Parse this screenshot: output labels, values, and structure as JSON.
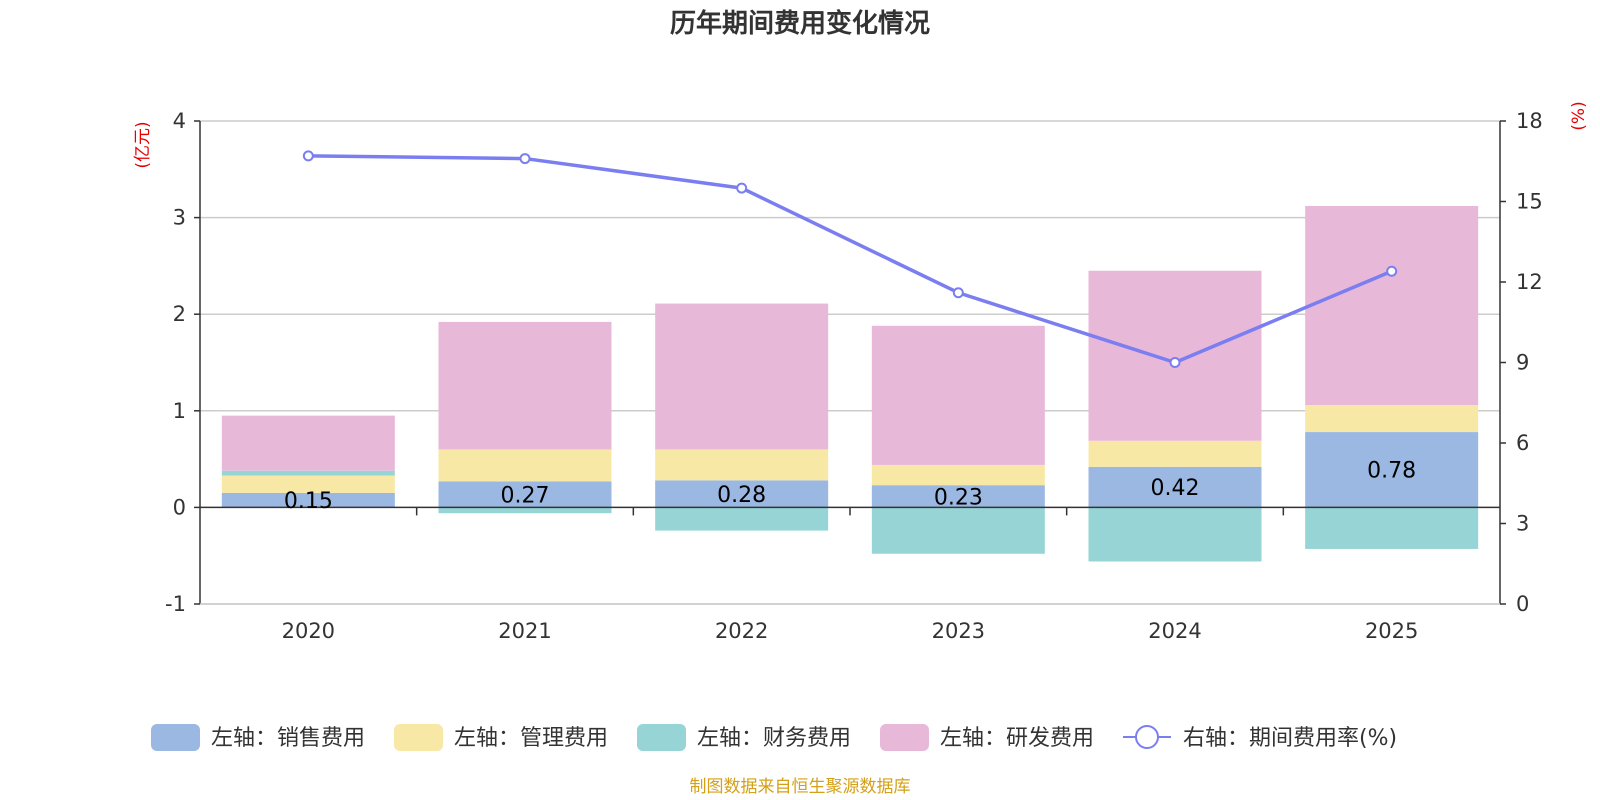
{
  "chart_data": {
    "type": "bar",
    "stacked": true,
    "title": "历年期间费用变化情况",
    "categories": [
      "2020",
      "2021",
      "2022",
      "2023",
      "2024",
      "2025"
    ],
    "left_axis": {
      "unit": "(亿元)",
      "min": -1,
      "max": 4,
      "ticks": [
        -1,
        0,
        1,
        2,
        3,
        4
      ]
    },
    "right_axis": {
      "unit": "(%)",
      "min": 0,
      "max": 18,
      "ticks": [
        0,
        3,
        6,
        9,
        12,
        15,
        18
      ]
    },
    "series": [
      {
        "name": "左轴：销售费用",
        "axis": "left",
        "color": "#9bb8e3",
        "values": [
          0.15,
          0.27,
          0.28,
          0.23,
          0.42,
          0.78
        ],
        "labels": [
          "0.15",
          "0.27",
          "0.28",
          "0.23",
          "0.42",
          "0.78"
        ]
      },
      {
        "name": "左轴：管理费用",
        "axis": "left",
        "color": "#f8e8a6",
        "values": [
          0.18,
          0.33,
          0.32,
          0.21,
          0.27,
          0.28
        ]
      },
      {
        "name": "左轴：财务费用",
        "axis": "left",
        "color": "#96d4d5",
        "values": [
          0.05,
          -0.06,
          -0.24,
          -0.48,
          -0.56,
          -0.43
        ]
      },
      {
        "name": "左轴：研发费用",
        "axis": "left",
        "color": "#e8b8d9",
        "values": [
          0.57,
          1.32,
          1.51,
          1.44,
          1.76,
          2.06
        ]
      },
      {
        "name": "右轴：期间费用率(%)",
        "axis": "right",
        "type": "line",
        "color": "#7b7ef0",
        "values": [
          16.7,
          16.6,
          15.5,
          11.6,
          9.0,
          12.4
        ]
      }
    ],
    "legend_position": "bottom",
    "grid": true
  },
  "footer": {
    "source": "制图数据来自恒生聚源数据库"
  }
}
